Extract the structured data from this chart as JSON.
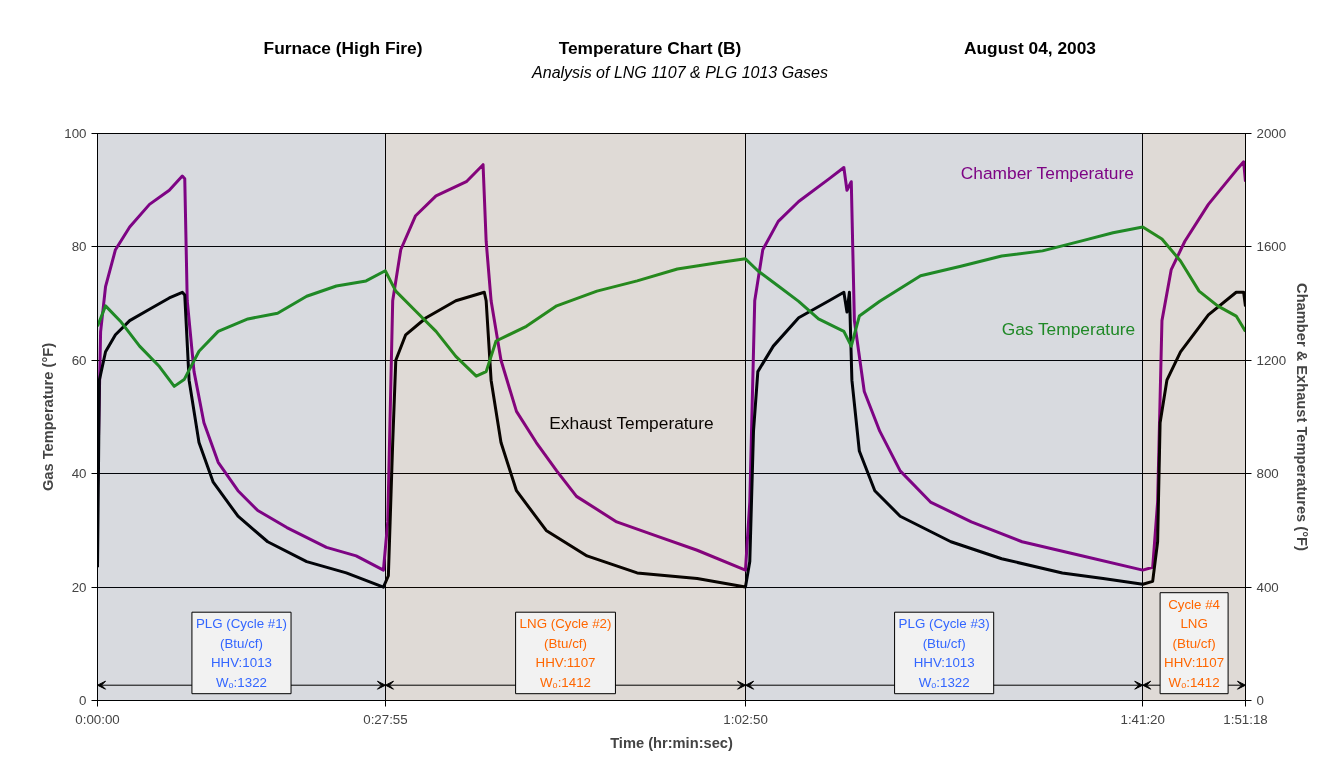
{
  "chart_data": {
    "type": "line",
    "title": "Temperature Chart (B)",
    "subtitle": "Analysis of LNG 1107 & PLG 1013 Gases",
    "annotations": [
      "Furnace (High Fire)",
      "August 04, 2003"
    ],
    "xlabel": "Time (hr:min:sec)",
    "ylabel": "Gas Temperature (°F)",
    "y2label": "Chamber & Exhaust Temperatures (°F)",
    "xlim": [
      0,
      1.855
    ],
    "xticks": [
      {
        "value": 0,
        "label": "0:00:00"
      },
      {
        "value": 0.4653,
        "label": "0:27:55"
      },
      {
        "value": 1.0472,
        "label": "1:02:50"
      },
      {
        "value": 1.6889,
        "label": "1:41:20"
      },
      {
        "value": 1.855,
        "label": "1:51:18"
      }
    ],
    "ylim": [
      0,
      100
    ],
    "yticks": [
      0,
      20,
      40,
      60,
      80,
      100
    ],
    "y2lim": [
      0,
      2000
    ],
    "y2ticks": [
      0,
      400,
      800,
      1200,
      1600,
      2000
    ],
    "grid": true,
    "line_style": "solid",
    "series": [
      {
        "name": "Chamber Temperature",
        "color": "#800080",
        "axis": "y2",
        "x": [
          0,
          0.005,
          0.013,
          0.029,
          0.052,
          0.084,
          0.116,
          0.137,
          0.141,
          0.145,
          0.156,
          0.172,
          0.195,
          0.227,
          0.259,
          0.306,
          0.37,
          0.418,
          0.462,
          0.469,
          0.477,
          0.49,
          0.514,
          0.547,
          0.596,
          0.623,
          0.628,
          0.636,
          0.652,
          0.677,
          0.709,
          0.742,
          0.774,
          0.839,
          0.904,
          0.969,
          1.047,
          1.054,
          1.062,
          1.075,
          1.1,
          1.133,
          1.182,
          1.206,
          1.211,
          1.218,
          1.223,
          1.239,
          1.264,
          1.297,
          1.346,
          1.412,
          1.494,
          1.592,
          1.689,
          1.705,
          1.713,
          1.72,
          1.735,
          1.757,
          1.795,
          1.84,
          1.852,
          1.855
        ],
        "values": [
          750,
          1300,
          1460,
          1590,
          1670,
          1750,
          1800,
          1850,
          1840,
          1410,
          1160,
          980,
          840,
          740,
          670,
          610,
          540,
          510,
          460,
          630,
          1410,
          1590,
          1710,
          1780,
          1830,
          1890,
          1620,
          1410,
          1200,
          1020,
          910,
          810,
          720,
          630,
          580,
          530,
          460,
          700,
          1410,
          1590,
          1690,
          1760,
          1840,
          1880,
          1800,
          1830,
          1340,
          1090,
          950,
          810,
          700,
          630,
          560,
          510,
          460,
          470,
          700,
          1340,
          1520,
          1620,
          1750,
          1870,
          1900,
          1830
        ]
      },
      {
        "name": "Exhaust Temperature",
        "color": "#000000",
        "axis": "y2",
        "x": [
          0,
          0.003,
          0.013,
          0.029,
          0.052,
          0.084,
          0.116,
          0.137,
          0.141,
          0.148,
          0.164,
          0.187,
          0.227,
          0.275,
          0.338,
          0.402,
          0.462,
          0.47,
          0.477,
          0.482,
          0.498,
          0.531,
          0.579,
          0.625,
          0.628,
          0.636,
          0.652,
          0.677,
          0.725,
          0.791,
          0.872,
          0.969,
          1.047,
          1.054,
          1.06,
          1.067,
          1.092,
          1.133,
          1.182,
          1.206,
          1.211,
          1.215,
          1.219,
          1.231,
          1.256,
          1.297,
          1.379,
          1.461,
          1.559,
          1.625,
          1.689,
          1.705,
          1.713,
          1.717,
          1.728,
          1.75,
          1.795,
          1.84,
          1.852,
          1.855
        ],
        "values": [
          470,
          1130,
          1230,
          1290,
          1340,
          1380,
          1420,
          1440,
          1430,
          1130,
          910,
          770,
          650,
          560,
          490,
          450,
          400,
          440,
          910,
          1200,
          1290,
          1350,
          1410,
          1440,
          1410,
          1130,
          910,
          740,
          600,
          510,
          450,
          430,
          400,
          490,
          950,
          1160,
          1250,
          1350,
          1410,
          1440,
          1370,
          1440,
          1130,
          880,
          740,
          650,
          560,
          500,
          450,
          430,
          410,
          420,
          560,
          980,
          1130,
          1230,
          1360,
          1440,
          1440,
          1390
        ]
      },
      {
        "name": "Gas Temperature",
        "color": "#1f8a1f",
        "axis": "y",
        "x": [
          0,
          0.013,
          0.037,
          0.068,
          0.1,
          0.124,
          0.14,
          0.164,
          0.195,
          0.243,
          0.291,
          0.338,
          0.386,
          0.434,
          0.465,
          0.482,
          0.514,
          0.547,
          0.579,
          0.612,
          0.628,
          0.644,
          0.693,
          0.742,
          0.807,
          0.872,
          0.937,
          1.002,
          1.047,
          1.067,
          1.1,
          1.133,
          1.165,
          1.206,
          1.218,
          1.231,
          1.264,
          1.33,
          1.395,
          1.461,
          1.527,
          1.592,
          1.641,
          1.689,
          1.72,
          1.75,
          1.78,
          1.81,
          1.84,
          1.855
        ],
        "values": [
          66,
          69.6,
          66.9,
          62.5,
          58.9,
          55.4,
          56.6,
          61.6,
          65.1,
          67.3,
          68.3,
          71.3,
          73.1,
          74,
          75.8,
          72.2,
          68.7,
          65.1,
          60.7,
          57.2,
          58,
          63.4,
          66,
          69.6,
          72.2,
          74,
          76.1,
          77.2,
          77.9,
          75.8,
          73.1,
          70.4,
          67.3,
          65.1,
          62.5,
          67.8,
          70.4,
          74.9,
          76.6,
          78.4,
          79.3,
          81.1,
          82.5,
          83.5,
          81.4,
          77.5,
          72.2,
          69.6,
          67.8,
          65.1
        ]
      }
    ],
    "bands": [
      {
        "axis": "x",
        "from": 0,
        "to": 0.4653,
        "label": "PLG (Cycle #1)\n(Btu/cf)\nHHV:1013\nWₒ:1322",
        "color": "#3366ff"
      },
      {
        "axis": "x",
        "from": 0.4653,
        "to": 1.0472,
        "label": "LNG (Cycle #2)\n(Btu/cf)\nHHV:1107\nWₒ:1412",
        "color": "#ff6600"
      },
      {
        "axis": "x",
        "from": 1.0472,
        "to": 1.6889,
        "label": "PLG (Cycle #3)\n(Btu/cf)\nHHV:1013\nWₒ:1322",
        "color": "#3366ff"
      },
      {
        "axis": "x",
        "from": 1.6889,
        "to": 1.855,
        "label": "Cycle #4\nLNG\n(Btu/cf)\nHHV:1107\nWₒ:1412",
        "color": "#ff6600"
      }
    ]
  }
}
